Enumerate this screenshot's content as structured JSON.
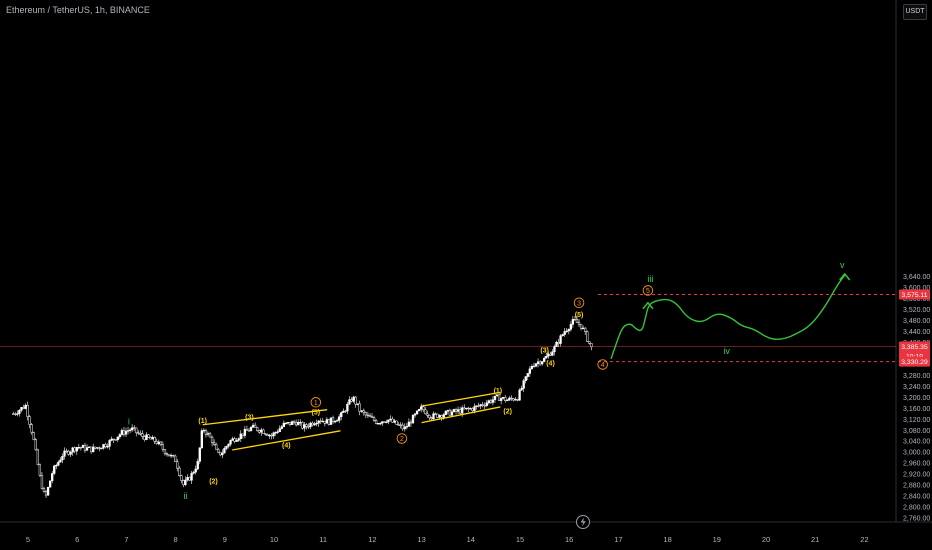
{
  "header": {
    "symbol": "Ethereum / TetherUS, 1h, BINANCE",
    "unit": "USDT"
  },
  "colors": {
    "up": "#ffffff",
    "down": "#ffffff",
    "channel": "#ffd60a",
    "orange": "#f7931a",
    "green": "#2bd24b",
    "projection": "#35c23a",
    "red": "#f23645",
    "crosshair": "#8b2a2a"
  },
  "chart_data": {
    "type": "candlestick",
    "title": "Ethereum / TetherUS, 1h, BINANCE",
    "xlabel": "",
    "ylabel": "USDT",
    "ylim": [
      2740,
      3680
    ],
    "xlim": [
      4.7,
      22.7
    ],
    "y_ticks": [
      {
        "v": 2760,
        "label": "2,760.00"
      },
      {
        "v": 2800,
        "label": "2,800.00"
      },
      {
        "v": 2840,
        "label": "2,840.00"
      },
      {
        "v": 2880,
        "label": "2,880.00"
      },
      {
        "v": 2920,
        "label": "2,920.00"
      },
      {
        "v": 2960,
        "label": "2,960.00"
      },
      {
        "v": 3000,
        "label": "3,000.00"
      },
      {
        "v": 3040,
        "label": "3,040.00"
      },
      {
        "v": 3080,
        "label": "3,080.00"
      },
      {
        "v": 3120,
        "label": "3,120.00"
      },
      {
        "v": 3160,
        "label": "3,160.00"
      },
      {
        "v": 3200,
        "label": "3,200.00"
      },
      {
        "v": 3240,
        "label": "3,240.00"
      },
      {
        "v": 3280,
        "label": "3,280.00"
      },
      {
        "v": 3400,
        "label": "3,400.00"
      },
      {
        "v": 3440,
        "label": "3,440.00"
      },
      {
        "v": 3480,
        "label": "3,480.00"
      },
      {
        "v": 3520,
        "label": "3,520.00"
      },
      {
        "v": 3560,
        "label": "3,560.00"
      },
      {
        "v": 3600,
        "label": "3,600.00"
      },
      {
        "v": 3640,
        "label": "3,640.00"
      }
    ],
    "x_ticks": [
      {
        "v": 5,
        "label": "5"
      },
      {
        "v": 6,
        "label": "6"
      },
      {
        "v": 7,
        "label": "7"
      },
      {
        "v": 8,
        "label": "8"
      },
      {
        "v": 9,
        "label": "9"
      },
      {
        "v": 10,
        "label": "10"
      },
      {
        "v": 11,
        "label": "11"
      },
      {
        "v": 12,
        "label": "12"
      },
      {
        "v": 13,
        "label": "13"
      },
      {
        "v": 14,
        "label": "14"
      },
      {
        "v": 15,
        "label": "15"
      },
      {
        "v": 16,
        "label": "16"
      },
      {
        "v": 17,
        "label": "17"
      },
      {
        "v": 18,
        "label": "18"
      },
      {
        "v": 19,
        "label": "19"
      },
      {
        "v": 20,
        "label": "20"
      },
      {
        "v": 21,
        "label": "21"
      },
      {
        "v": 22,
        "label": "22"
      }
    ],
    "price_path": [
      [
        4.7,
        3140
      ],
      [
        4.95,
        3170
      ],
      [
        5.1,
        3060
      ],
      [
        5.25,
        2900
      ],
      [
        5.35,
        2830
      ],
      [
        5.5,
        2930
      ],
      [
        5.7,
        2990
      ],
      [
        6.0,
        3020
      ],
      [
        6.3,
        3010
      ],
      [
        6.6,
        3030
      ],
      [
        6.9,
        3070
      ],
      [
        7.1,
        3085
      ],
      [
        7.3,
        3060
      ],
      [
        7.6,
        3040
      ],
      [
        7.8,
        3000
      ],
      [
        8.0,
        2970
      ],
      [
        8.15,
        2880
      ],
      [
        8.3,
        2910
      ],
      [
        8.45,
        2960
      ],
      [
        8.55,
        3090
      ],
      [
        8.75,
        3040
      ],
      [
        8.85,
        2990
      ],
      [
        8.95,
        3000
      ],
      [
        9.1,
        3040
      ],
      [
        9.3,
        3060
      ],
      [
        9.55,
        3090
      ],
      [
        9.75,
        3080
      ],
      [
        9.95,
        3060
      ],
      [
        10.2,
        3100
      ],
      [
        10.45,
        3110
      ],
      [
        10.6,
        3090
      ],
      [
        10.9,
        3120
      ],
      [
        11.1,
        3110
      ],
      [
        11.35,
        3130
      ],
      [
        11.6,
        3200
      ],
      [
        11.75,
        3150
      ],
      [
        11.9,
        3130
      ],
      [
        12.1,
        3110
      ],
      [
        12.3,
        3120
      ],
      [
        12.5,
        3100
      ],
      [
        12.65,
        3085
      ],
      [
        12.85,
        3130
      ],
      [
        13.0,
        3160
      ],
      [
        13.2,
        3130
      ],
      [
        13.45,
        3140
      ],
      [
        13.75,
        3150
      ],
      [
        14.05,
        3160
      ],
      [
        14.3,
        3180
      ],
      [
        14.55,
        3200
      ],
      [
        14.75,
        3190
      ],
      [
        14.95,
        3200
      ],
      [
        15.1,
        3260
      ],
      [
        15.25,
        3320
      ],
      [
        15.5,
        3340
      ],
      [
        15.7,
        3380
      ],
      [
        15.9,
        3440
      ],
      [
        16.1,
        3480
      ],
      [
        16.25,
        3460
      ],
      [
        16.35,
        3420
      ],
      [
        16.45,
        3380
      ]
    ],
    "horizontal_levels": [
      {
        "value": 3575.11,
        "label": "3,575.11",
        "style": "dashed"
      },
      {
        "value": 3385.35,
        "label": "3,385.35",
        "sub": "10:19",
        "style": "solid"
      },
      {
        "value": 3330.29,
        "label": "3,330.29",
        "style": "dashed"
      }
    ],
    "channels": [
      {
        "upper": [
          [
            8.55,
            3100
          ],
          [
            11.08,
            3155
          ]
        ],
        "lower": [
          [
            9.15,
            3008
          ],
          [
            11.35,
            3078
          ]
        ]
      },
      {
        "upper": [
          [
            13.0,
            3168
          ],
          [
            14.6,
            3218
          ]
        ],
        "lower": [
          [
            13.0,
            3108
          ],
          [
            14.6,
            3165
          ]
        ]
      }
    ],
    "wave_labels": [
      {
        "x": 8.55,
        "y": 3115,
        "text": "(1)",
        "color": "yellow"
      },
      {
        "x": 8.77,
        "y": 2895,
        "text": "(2)",
        "color": "yellow"
      },
      {
        "x": 9.5,
        "y": 3128,
        "text": "(3)",
        "color": "yellow"
      },
      {
        "x": 10.25,
        "y": 3027,
        "text": "(4)",
        "color": "yellow"
      },
      {
        "x": 10.85,
        "y": 3146,
        "text": "(5)",
        "color": "yellow"
      },
      {
        "x": 10.85,
        "y": 3182,
        "text": "1",
        "color": "orange",
        "circled": true
      },
      {
        "x": 12.6,
        "y": 3050,
        "text": "2",
        "color": "orange",
        "circled": true
      },
      {
        "x": 14.55,
        "y": 3225,
        "text": "(1)",
        "color": "yellow"
      },
      {
        "x": 14.75,
        "y": 3151,
        "text": "(2)",
        "color": "yellow"
      },
      {
        "x": 15.5,
        "y": 3373,
        "text": "(3)",
        "color": "yellow"
      },
      {
        "x": 15.62,
        "y": 3326,
        "text": "(4)",
        "color": "yellow"
      },
      {
        "x": 16.2,
        "y": 3502,
        "text": "(5)",
        "color": "yellow"
      },
      {
        "x": 16.2,
        "y": 3545,
        "text": "3",
        "color": "orange",
        "circled": true
      },
      {
        "x": 16.68,
        "y": 3320,
        "text": "4",
        "color": "orange",
        "circled": true
      },
      {
        "x": 17.6,
        "y": 3590,
        "text": "5",
        "color": "orange",
        "circled": true
      },
      {
        "x": 7.05,
        "y": 3110,
        "text": "i",
        "color": "green"
      },
      {
        "x": 8.2,
        "y": 2838,
        "text": "ii",
        "color": "green"
      },
      {
        "x": 17.65,
        "y": 3630,
        "text": "iii",
        "color": "green"
      },
      {
        "x": 19.2,
        "y": 3367,
        "text": "iv",
        "color": "green"
      },
      {
        "x": 21.55,
        "y": 3680,
        "text": "v",
        "color": "green"
      }
    ],
    "projection": [
      [
        16.85,
        3340
      ],
      [
        17.0,
        3420
      ],
      [
        17.1,
        3460
      ],
      [
        17.25,
        3470
      ],
      [
        17.35,
        3450
      ],
      [
        17.48,
        3440
      ],
      [
        17.55,
        3490
      ],
      [
        17.6,
        3530
      ],
      [
        17.7,
        3550
      ],
      [
        18.0,
        3560
      ],
      [
        18.2,
        3540
      ],
      [
        18.4,
        3490
      ],
      [
        18.7,
        3470
      ],
      [
        19.0,
        3510
      ],
      [
        19.3,
        3490
      ],
      [
        19.5,
        3460
      ],
      [
        19.75,
        3450
      ],
      [
        20.0,
        3420
      ],
      [
        20.2,
        3410
      ],
      [
        20.4,
        3415
      ],
      [
        20.6,
        3430
      ],
      [
        20.9,
        3460
      ],
      [
        21.2,
        3530
      ],
      [
        21.45,
        3610
      ],
      [
        21.62,
        3650
      ]
    ],
    "projection_arrows": [
      [
        17.6,
        3545
      ],
      [
        21.6,
        3650
      ]
    ]
  }
}
